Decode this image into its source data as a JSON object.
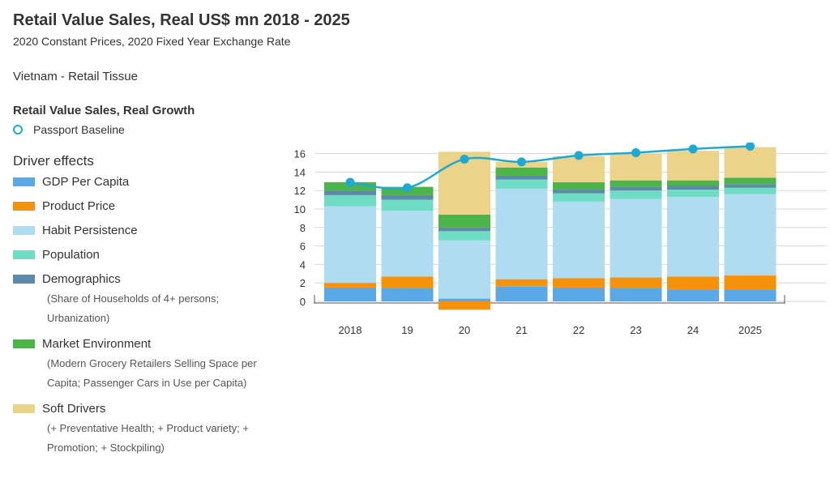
{
  "header": {
    "title": "Retail Value Sales, Real US$ mn 2018 - 2025",
    "subtitle": "2020 Constant Prices, 2020 Fixed Year Exchange Rate",
    "market": "Vietnam - Retail Tissue"
  },
  "growth_legend": {
    "heading": "Retail Value Sales, Real Growth",
    "series_label": "Passport Baseline",
    "color": "#1fa9d2"
  },
  "drivers_legend": {
    "heading": "Driver effects",
    "items": [
      {
        "label": "GDP Per Capita",
        "color": "#5aa9e6",
        "note": ""
      },
      {
        "label": "Product Price",
        "color": "#f5920c",
        "note": ""
      },
      {
        "label": "Habit Persistence",
        "color": "#afdcf1",
        "note": ""
      },
      {
        "label": "Population",
        "color": "#6fdcc4",
        "note": ""
      },
      {
        "label": "Demographics",
        "color": "#5d8aab",
        "note": "(Share of Households of 4+ persons; Urbanization)"
      },
      {
        "label": "Market Environment",
        "color": "#4bb54a",
        "note": "(Modern Grocery Retailers Selling Space per Capita; Passenger Cars in Use per Capita)"
      },
      {
        "label": "Soft Drivers",
        "color": "#ebd48a",
        "note": "(+ Preventative Health; + Product variety; + Promotion; + Stockpiling)"
      }
    ]
  },
  "chart_data": {
    "type": "bar",
    "stacked": true,
    "categories": [
      "2018",
      "19",
      "20",
      "21",
      "22",
      "23",
      "24",
      "2025"
    ],
    "ylim": [
      -1,
      16
    ],
    "yticks": [
      0,
      2,
      4,
      6,
      8,
      10,
      12,
      14,
      16
    ],
    "grid": true,
    "series": [
      {
        "name": "GDP Per Capita",
        "color": "#5aa9e6",
        "values": [
          1.5,
          1.4,
          0.3,
          1.6,
          1.5,
          1.4,
          1.3,
          1.3
        ]
      },
      {
        "name": "Product Price",
        "color": "#f5920c",
        "values": [
          0.5,
          1.3,
          -0.9,
          0.8,
          1.0,
          1.2,
          1.4,
          1.5
        ]
      },
      {
        "name": "Habit Persistence",
        "color": "#afdcf1",
        "values": [
          8.3,
          7.1,
          6.3,
          9.8,
          8.3,
          8.5,
          8.6,
          8.8
        ]
      },
      {
        "name": "Population",
        "color": "#6fdcc4",
        "values": [
          1.2,
          1.2,
          1.0,
          1.0,
          0.9,
          0.9,
          0.8,
          0.7
        ]
      },
      {
        "name": "Demographics",
        "color": "#5d8aab",
        "values": [
          0.5,
          0.5,
          0.4,
          0.4,
          0.4,
          0.4,
          0.4,
          0.4
        ]
      },
      {
        "name": "Market Environment",
        "color": "#4bb54a",
        "values": [
          0.9,
          0.9,
          1.4,
          0.9,
          0.8,
          0.7,
          0.6,
          0.7
        ]
      },
      {
        "name": "Soft Drivers",
        "color": "#ebd48a",
        "values": [
          0.0,
          0.0,
          6.8,
          0.6,
          2.8,
          2.9,
          3.2,
          3.3
        ]
      }
    ],
    "line": {
      "name": "Passport Baseline",
      "color": "#1fa9d2",
      "values": [
        12.9,
        12.3,
        15.4,
        15.1,
        15.8,
        16.1,
        16.5,
        16.8
      ]
    }
  }
}
